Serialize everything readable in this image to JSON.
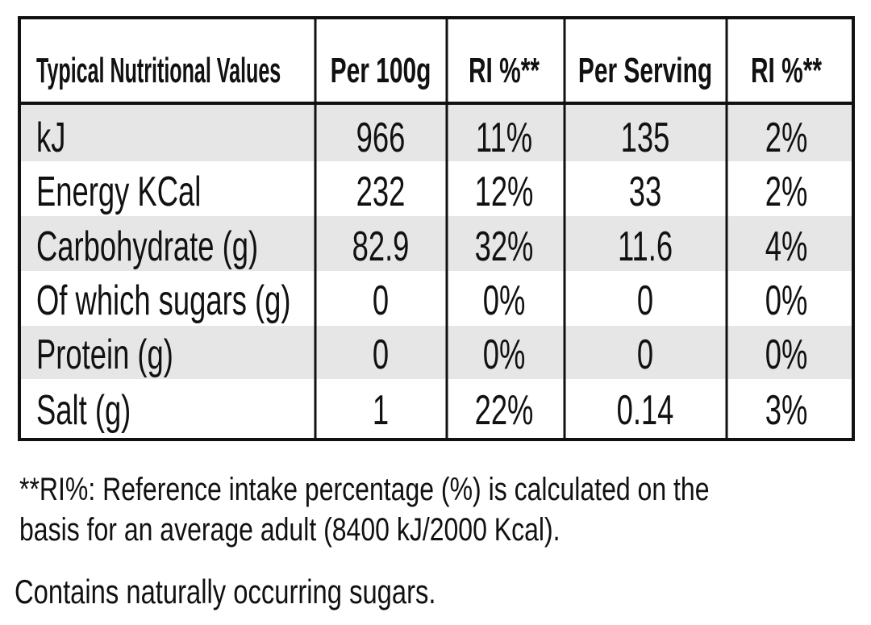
{
  "table": {
    "header": [
      "Typical Nutritional Values",
      "Per 100g",
      "RI %**",
      "Per Serving",
      "RI %**"
    ],
    "rows": [
      [
        "kJ",
        "966",
        "11%",
        "135",
        "2%"
      ],
      [
        "Energy KCal",
        "232",
        "12%",
        "33",
        "2%"
      ],
      [
        "Carbohydrate (g)",
        "82.9",
        "32%",
        "11.6",
        "4%"
      ],
      [
        "Of which sugars (g)",
        "0",
        "0%",
        "0",
        "0%"
      ],
      [
        "Protein (g)",
        "0",
        "0%",
        "0",
        "0%"
      ],
      [
        "Salt (g)",
        "1",
        "22%",
        "0.14",
        "3%"
      ]
    ]
  },
  "footnote": [
    "**RI%: Reference intake percentage (%) is calculated on the",
    "basis for an average adult (8400 kJ/2000 Kcal)."
  ],
  "note": "Contains naturally occurring sugars."
}
